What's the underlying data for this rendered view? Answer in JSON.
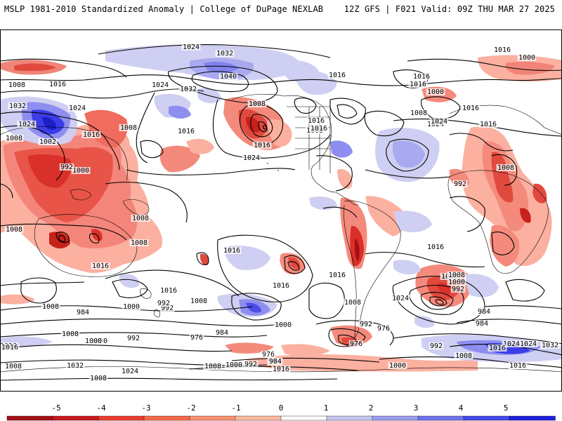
{
  "header": {
    "left": "MSLP 1981-2010 Standardized Anomaly | College of DuPage NEXLAB",
    "right": "12Z GFS | F021 Valid: 09Z THU MAR 27 2025"
  },
  "colorbar": {
    "ticks": [
      "-5",
      "-4",
      "-3",
      "-2",
      "-1",
      "0",
      "1",
      "2",
      "3",
      "4",
      "5"
    ],
    "colors": [
      "#a50f15",
      "#cb181d",
      "#ef3b2c",
      "#fb6a4a",
      "#fc9272",
      "#fcbba1",
      "#ffffff",
      "#c6c6f0",
      "#9e9ef2",
      "#7373f0",
      "#4848ee",
      "#1f1fe0"
    ]
  },
  "map": {
    "isobar_labels": [
      {
        "text": "1024"
      },
      {
        "text": "1032"
      },
      {
        "text": "1040"
      },
      {
        "text": "1016"
      },
      {
        "text": "1016"
      },
      {
        "text": "1000"
      },
      {
        "text": "1008"
      },
      {
        "text": "1016"
      },
      {
        "text": "1024"
      },
      {
        "text": "1032"
      },
      {
        "text": "1032"
      },
      {
        "text": "1024"
      },
      {
        "text": "1024"
      },
      {
        "text": "1008"
      },
      {
        "text": "1016"
      },
      {
        "text": "1008"
      },
      {
        "text": "1002"
      },
      {
        "text": "1000"
      },
      {
        "text": "992"
      },
      {
        "text": "1008"
      },
      {
        "text": "1016"
      },
      {
        "text": "1024"
      },
      {
        "text": "1016"
      },
      {
        "text": "1008"
      },
      {
        "text": "1008"
      },
      {
        "text": "1024"
      },
      {
        "text": "1016"
      },
      {
        "text": "1016"
      },
      {
        "text": "1024"
      },
      {
        "text": "1016"
      },
      {
        "text": "1016"
      },
      {
        "text": "1008"
      },
      {
        "text": "992"
      },
      {
        "text": "1000"
      },
      {
        "text": "1016"
      },
      {
        "text": "1016"
      },
      {
        "text": "1008"
      },
      {
        "text": "1008"
      },
      {
        "text": "1008"
      },
      {
        "text": "1008"
      },
      {
        "text": "1016"
      },
      {
        "text": "1016"
      },
      {
        "text": "1016"
      },
      {
        "text": "1016"
      },
      {
        "text": "1016"
      },
      {
        "text": "1024"
      },
      {
        "text": "1008"
      },
      {
        "text": "1008"
      },
      {
        "text": "1000"
      },
      {
        "text": "992"
      },
      {
        "text": "1008"
      },
      {
        "text": "1016"
      },
      {
        "text": "984"
      },
      {
        "text": "1000"
      },
      {
        "text": "992"
      },
      {
        "text": "1008"
      },
      {
        "text": "1000"
      },
      {
        "text": "992"
      },
      {
        "text": "984"
      },
      {
        "text": "976"
      },
      {
        "text": "984"
      },
      {
        "text": "976"
      },
      {
        "text": "976"
      },
      {
        "text": "984"
      },
      {
        "text": "1008"
      },
      {
        "text": "1024"
      },
      {
        "text": "1024"
      },
      {
        "text": "1000"
      },
      {
        "text": "992"
      },
      {
        "text": "1008"
      },
      {
        "text": "1016"
      },
      {
        "text": "1032"
      },
      {
        "text": "1016"
      },
      {
        "text": "1032"
      },
      {
        "text": "1024"
      },
      {
        "text": "1008"
      },
      {
        "text": "1000"
      },
      {
        "text": "992"
      },
      {
        "text": "1008"
      },
      {
        "text": "984"
      },
      {
        "text": "1016"
      },
      {
        "text": "1000"
      },
      {
        "text": "992"
      },
      {
        "text": "1000"
      },
      {
        "text": "1008"
      },
      {
        "text": "1016"
      },
      {
        "text": "992"
      },
      {
        "text": "984"
      },
      {
        "text": "976"
      },
      {
        "text": "1016"
      }
    ]
  }
}
